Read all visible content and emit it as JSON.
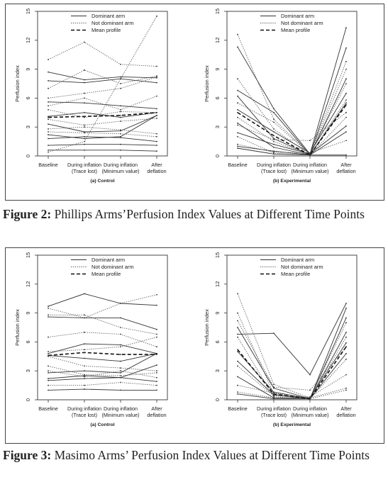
{
  "figures": [
    {
      "caption_label": "Figure 2:",
      "caption_text": " Phillips Arms’Perfusion Index Values at Different Time Points"
    },
    {
      "caption_label": "Figure 3:",
      "caption_text": " Masimo Arms’ Perfusion Index Values at Different Time Points"
    }
  ],
  "legend": {
    "dominant": "Dominant arm",
    "not_dominant": "Not dominant arm",
    "mean": "Mean profile"
  },
  "chart_data": [
    {
      "type": "line",
      "figure": 2,
      "panel": "(a) Control",
      "ylabel": "Perfusion index",
      "ylim": [
        0,
        15
      ],
      "yticks": [
        0,
        3,
        6,
        9,
        12,
        15
      ],
      "categories": [
        "Baseline",
        "During inflation\n(Trace lost)",
        "During inflation\n(Minimum value)",
        "After\ndeflation"
      ],
      "series": [
        {
          "style": "solid",
          "values": [
            8.7,
            7.9,
            8.2,
            8.1
          ]
        },
        {
          "style": "solid",
          "values": [
            7.8,
            7.6,
            8.0,
            7.6
          ]
        },
        {
          "style": "solid",
          "values": [
            5.6,
            5.5,
            5.2,
            4.9
          ]
        },
        {
          "style": "solid",
          "values": [
            4.1,
            4.5,
            4.0,
            4.5
          ]
        },
        {
          "style": "solid",
          "values": [
            3.3,
            2.5,
            2.6,
            4.2
          ]
        },
        {
          "style": "solid",
          "values": [
            2.2,
            1.8,
            2.0,
            4.2
          ]
        },
        {
          "style": "solid",
          "values": [
            1.8,
            2.0,
            1.9,
            1.5
          ]
        },
        {
          "style": "solid",
          "values": [
            1.1,
            1.2,
            1.2,
            1.1
          ]
        },
        {
          "style": "solid",
          "values": [
            0.6,
            0.6,
            0.6,
            0.5
          ]
        },
        {
          "style": "dotted",
          "values": [
            10.0,
            11.8,
            9.5,
            9.3
          ]
        },
        {
          "style": "dotted",
          "values": [
            7.0,
            8.9,
            7.5,
            8.3
          ]
        },
        {
          "style": "dotted",
          "values": [
            6.0,
            6.5,
            7.0,
            8.2
          ]
        },
        {
          "style": "dotted",
          "values": [
            0.4,
            1.5,
            8.0,
            14.5
          ]
        },
        {
          "style": "dotted",
          "values": [
            5.2,
            6.0,
            4.8,
            6.2
          ]
        },
        {
          "style": "dotted",
          "values": [
            4.8,
            4.0,
            4.6,
            4.5
          ]
        },
        {
          "style": "dotted",
          "values": [
            3.8,
            3.2,
            3.6,
            3.9
          ]
        },
        {
          "style": "dotted",
          "values": [
            2.8,
            3.0,
            2.7,
            2.3
          ]
        },
        {
          "style": "dotted",
          "values": [
            2.5,
            2.4,
            2.3,
            2.0
          ]
        },
        {
          "style": "dashed",
          "values": [
            4.0,
            4.1,
            4.2,
            4.5
          ]
        }
      ]
    },
    {
      "type": "line",
      "figure": 2,
      "panel": "(b) Experimental",
      "ylabel": "Perfusion index",
      "ylim": [
        0,
        15
      ],
      "yticks": [
        0,
        3,
        6,
        9,
        12,
        15
      ],
      "categories": [
        "Baseline",
        "During inflation\n(Trace lost)",
        "During inflation\n(Minimum value)",
        "After\ndeflation"
      ],
      "series": [
        {
          "style": "solid",
          "values": [
            11.3,
            4.9,
            0.2,
            13.3
          ]
        },
        {
          "style": "solid",
          "values": [
            6.8,
            4.5,
            0.1,
            11.2
          ]
        },
        {
          "style": "solid",
          "values": [
            6.2,
            1.8,
            0.1,
            8.0
          ]
        },
        {
          "style": "solid",
          "values": [
            4.8,
            2.5,
            0.3,
            6.5
          ]
        },
        {
          "style": "solid",
          "values": [
            3.4,
            0.9,
            0.1,
            5.5
          ]
        },
        {
          "style": "solid",
          "values": [
            2.4,
            1.2,
            0.2,
            3.1
          ]
        },
        {
          "style": "solid",
          "values": [
            1.0,
            0.5,
            0.1,
            2.5
          ]
        },
        {
          "style": "solid",
          "values": [
            0.8,
            0.2,
            0.1,
            0.1
          ]
        },
        {
          "style": "dotted",
          "values": [
            12.6,
            3.8,
            0.2,
            9.8
          ]
        },
        {
          "style": "dotted",
          "values": [
            8.0,
            2.8,
            0.1,
            9.0
          ]
        },
        {
          "style": "dotted",
          "values": [
            5.5,
            3.5,
            0.2,
            7.5
          ]
        },
        {
          "style": "dotted",
          "values": [
            4.0,
            1.5,
            0.1,
            5.8
          ]
        },
        {
          "style": "dotted",
          "values": [
            3.2,
            1.7,
            1.6,
            4.5
          ]
        },
        {
          "style": "dotted",
          "values": [
            2.0,
            0.3,
            0.1,
            4.0
          ]
        },
        {
          "style": "dotted",
          "values": [
            1.2,
            0.4,
            0.3,
            1.6
          ]
        },
        {
          "style": "dashed",
          "values": [
            4.5,
            2.1,
            0.1,
            5.3
          ]
        }
      ]
    },
    {
      "type": "line",
      "figure": 3,
      "panel": "(a) Control",
      "ylabel": "Perfusion index",
      "ylim": [
        0,
        15
      ],
      "yticks": [
        0,
        3,
        6,
        9,
        12,
        15
      ],
      "categories": [
        "Baseline",
        "During inflation\n(Trace lost)",
        "During inflation\n(Minimum value)",
        "After\ndeflation"
      ],
      "series": [
        {
          "style": "solid",
          "values": [
            9.7,
            11.0,
            10.0,
            9.8
          ]
        },
        {
          "style": "solid",
          "values": [
            8.6,
            8.5,
            8.5,
            7.3
          ]
        },
        {
          "style": "solid",
          "values": [
            4.8,
            5.8,
            5.7,
            4.8
          ]
        },
        {
          "style": "solid",
          "values": [
            4.6,
            4.3,
            4.0,
            4.8
          ]
        },
        {
          "style": "solid",
          "values": [
            2.8,
            3.0,
            2.8,
            4.8
          ]
        },
        {
          "style": "solid",
          "values": [
            2.2,
            2.5,
            2.3,
            3.6
          ]
        },
        {
          "style": "solid",
          "values": [
            2.0,
            2.2,
            2.3,
            1.9
          ]
        },
        {
          "style": "solid",
          "values": [
            1.0,
            1.1,
            1.0,
            1.0
          ]
        },
        {
          "style": "dotted",
          "values": [
            9.5,
            8.5,
            10.0,
            10.9
          ]
        },
        {
          "style": "dotted",
          "values": [
            8.8,
            8.8,
            7.5,
            6.8
          ]
        },
        {
          "style": "dotted",
          "values": [
            6.5,
            7.0,
            6.8,
            5.5
          ]
        },
        {
          "style": "dotted",
          "values": [
            5.0,
            5.2,
            5.5,
            6.5
          ]
        },
        {
          "style": "dotted",
          "values": [
            4.5,
            3.5,
            3.3,
            3.0
          ]
        },
        {
          "style": "dotted",
          "values": [
            3.5,
            2.6,
            2.5,
            2.8
          ]
        },
        {
          "style": "dotted",
          "values": [
            3.0,
            2.4,
            3.0,
            2.3
          ]
        },
        {
          "style": "dotted",
          "values": [
            1.5,
            1.5,
            1.8,
            1.5
          ]
        },
        {
          "style": "dashed",
          "values": [
            4.6,
            4.9,
            4.7,
            4.7
          ]
        }
      ]
    },
    {
      "type": "line",
      "figure": 3,
      "panel": "(b) Experimental",
      "ylabel": "Perfusion index",
      "ylim": [
        0,
        15
      ],
      "yticks": [
        0,
        3,
        6,
        9,
        12,
        15
      ],
      "categories": [
        "Baseline",
        "During inflation\n(Trace lost)",
        "During inflation\n(Minimum value)",
        "After\ndeflation"
      ],
      "series": [
        {
          "style": "solid",
          "values": [
            6.8,
            6.9,
            2.6,
            10.0
          ]
        },
        {
          "style": "solid",
          "values": [
            7.5,
            1.2,
            0.1,
            9.5
          ]
        },
        {
          "style": "solid",
          "values": [
            5.0,
            0.8,
            0.1,
            8.5
          ]
        },
        {
          "style": "solid",
          "values": [
            4.0,
            0.5,
            0.1,
            7.0
          ]
        },
        {
          "style": "solid",
          "values": [
            2.4,
            0.2,
            0.2,
            5.9
          ]
        },
        {
          "style": "solid",
          "values": [
            0.6,
            0.1,
            0.1,
            4.8
          ]
        },
        {
          "style": "dotted",
          "values": [
            11.0,
            1.6,
            0.2,
            8.0
          ]
        },
        {
          "style": "dotted",
          "values": [
            9.0,
            0.6,
            0.1,
            6.5
          ]
        },
        {
          "style": "dotted",
          "values": [
            8.2,
            1.3,
            1.0,
            5.5
          ]
        },
        {
          "style": "dotted",
          "values": [
            6.5,
            0.3,
            0.1,
            4.2
          ]
        },
        {
          "style": "dotted",
          "values": [
            3.5,
            0.4,
            0.3,
            2.6
          ]
        },
        {
          "style": "dotted",
          "values": [
            1.5,
            0.7,
            0.2,
            1.2
          ]
        },
        {
          "style": "dotted",
          "values": [
            0.8,
            0.2,
            0.1,
            1.0
          ]
        },
        {
          "style": "dashed",
          "values": [
            5.2,
            0.6,
            0.1,
            5.5
          ]
        }
      ]
    }
  ]
}
